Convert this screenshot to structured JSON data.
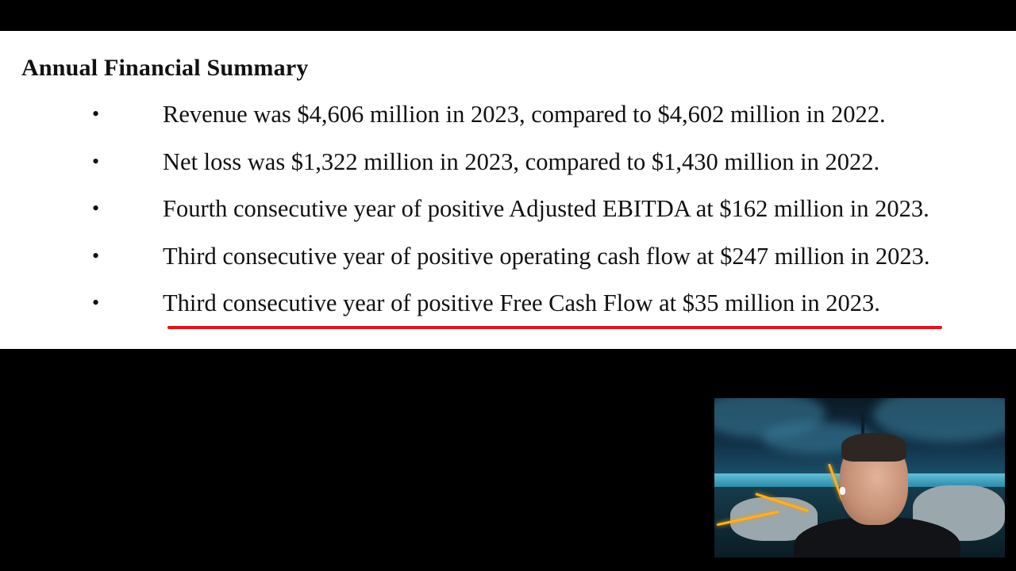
{
  "slide": {
    "title": "Annual Financial Summary",
    "bullet_symbol": "•",
    "bullets": [
      {
        "text": "Revenue was $4,606 million in 2023, compared to $4,602 million in 2022."
      },
      {
        "text": "Net loss was $1,322 million in 2023, compared to $1,430 million in 2022."
      },
      {
        "text": "Fourth consecutive year of positive Adjusted EBITDA at $162 million in 2023."
      },
      {
        "text": "Third consecutive year of positive operating cash flow at $247 million in 2023."
      },
      {
        "text": "Third consecutive year of positive Free Cash Flow at $35 million in 2023."
      }
    ],
    "highlighted_bullet_index": 4
  },
  "colors": {
    "background": "#000000",
    "slide_background": "#ffffff",
    "text": "#111111",
    "highlight_underline": "#e0141a"
  },
  "webcam": {
    "icon": "webcam-overlay-presenter"
  }
}
